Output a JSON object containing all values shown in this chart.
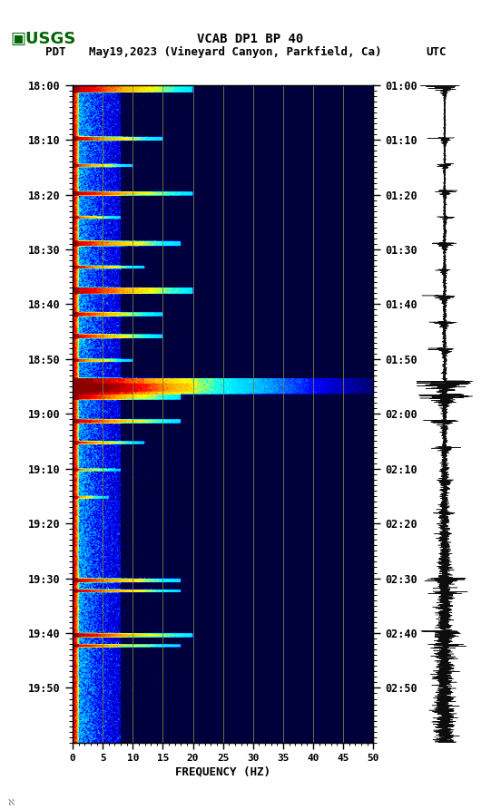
{
  "title_line1": "VCAB DP1 BP 40",
  "title_line2_left": "PDT",
  "title_line2_mid": "May19,2023 (Vineyard Canyon, Parkfield, Ca)",
  "title_line2_right": "UTC",
  "ylabel_left_times": [
    "18:00",
    "18:10",
    "18:20",
    "18:30",
    "18:40",
    "18:50",
    "19:00",
    "19:10",
    "19:20",
    "19:30",
    "19:40",
    "19:50"
  ],
  "ylabel_right_times": [
    "01:00",
    "01:10",
    "01:20",
    "01:30",
    "01:40",
    "01:50",
    "02:00",
    "02:10",
    "02:20",
    "02:30",
    "02:40",
    "02:50"
  ],
  "xlabel": "FREQUENCY (HZ)",
  "freq_min": 0,
  "freq_max": 50,
  "freq_ticks": [
    0,
    5,
    10,
    15,
    20,
    25,
    30,
    35,
    40,
    45,
    50
  ],
  "freq_gridlines": [
    5,
    10,
    15,
    20,
    25,
    30,
    35,
    40,
    45
  ],
  "gridline_color": "#808040",
  "fig_bg_color": "#ffffff",
  "n_time": 1200,
  "n_freq": 500,
  "rand_seed": 42
}
